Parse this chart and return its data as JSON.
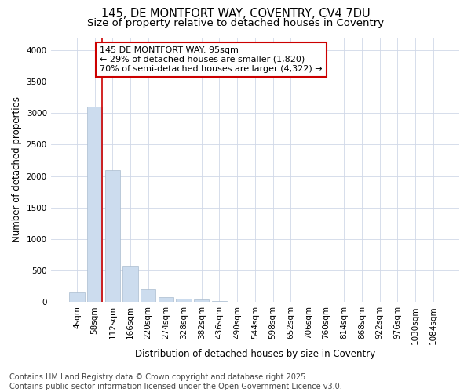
{
  "title_line1": "145, DE MONTFORT WAY, COVENTRY, CV4 7DU",
  "title_line2": "Size of property relative to detached houses in Coventry",
  "xlabel": "Distribution of detached houses by size in Coventry",
  "ylabel": "Number of detached properties",
  "categories": [
    "4sqm",
    "58sqm",
    "112sqm",
    "166sqm",
    "220sqm",
    "274sqm",
    "328sqm",
    "382sqm",
    "436sqm",
    "490sqm",
    "544sqm",
    "598sqm",
    "652sqm",
    "706sqm",
    "760sqm",
    "814sqm",
    "868sqm",
    "922sqm",
    "976sqm",
    "1030sqm",
    "1084sqm"
  ],
  "values": [
    155,
    3100,
    2090,
    580,
    210,
    85,
    55,
    40,
    20,
    0,
    0,
    0,
    0,
    0,
    0,
    0,
    0,
    0,
    0,
    0,
    0
  ],
  "bar_color": "#ccdcee",
  "bar_edge_color": "#aabcce",
  "redline_x": 1.425,
  "ylim": [
    0,
    4200
  ],
  "yticks": [
    0,
    500,
    1000,
    1500,
    2000,
    2500,
    3000,
    3500,
    4000
  ],
  "annotation_title": "145 DE MONTFORT WAY: 95sqm",
  "annotation_line2": "← 29% of detached houses are smaller (1,820)",
  "annotation_line3": "70% of semi-detached houses are larger (4,322) →",
  "annotation_box_color": "#ffffff",
  "annotation_box_edge": "#cc0000",
  "redline_color": "#cc0000",
  "footer_line1": "Contains HM Land Registry data © Crown copyright and database right 2025.",
  "footer_line2": "Contains public sector information licensed under the Open Government Licence v3.0.",
  "bg_color": "#ffffff",
  "plot_bg_color": "#ffffff",
  "grid_color": "#d0d8e8",
  "title_fontsize": 10.5,
  "subtitle_fontsize": 9.5,
  "axis_label_fontsize": 8.5,
  "tick_fontsize": 7.5,
  "footer_fontsize": 7,
  "annotation_fontsize": 8
}
